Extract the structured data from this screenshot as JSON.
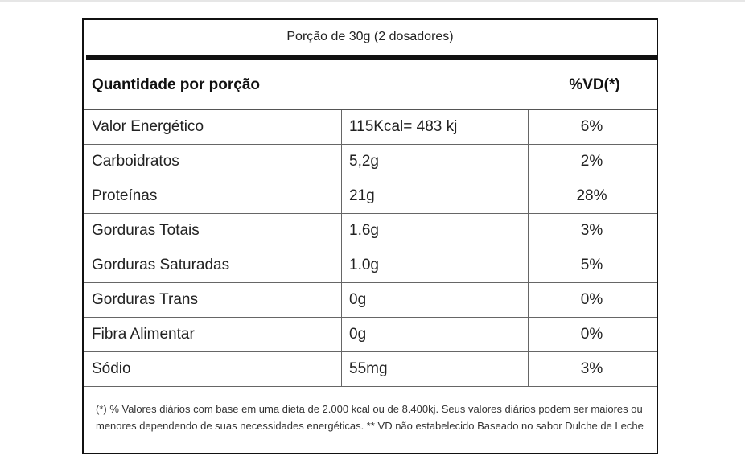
{
  "label": {
    "serving": "Porção de 30g (2 dosadores)",
    "header": {
      "quantity": "Quantidade por porção",
      "dv": "%VD(*)"
    },
    "rows": [
      {
        "name": "Valor Energético",
        "amount": "115Kcal= 483 kj",
        "dv": "6%"
      },
      {
        "name": "Carboidratos",
        "amount": "5,2g",
        "dv": "2%"
      },
      {
        "name": "Proteínas",
        "amount": "21g",
        "dv": "28%"
      },
      {
        "name": "Gorduras Totais",
        "amount": "1.6g",
        "dv": "3%"
      },
      {
        "name": "Gorduras Saturadas",
        "amount": "1.0g",
        "dv": "5%"
      },
      {
        "name": "Gorduras Trans",
        "amount": "0g",
        "dv": "0%"
      },
      {
        "name": "Fibra Alimentar",
        "amount": "0g",
        "dv": "0%"
      },
      {
        "name": "Sódio",
        "amount": "55mg",
        "dv": "3%"
      }
    ],
    "footnote": "(*) % Valores diários com base em uma dieta de 2.000 kcal ou de 8.400kj. Seus valores diários podem ser maiores ou menores dependendo de suas necessidades energéticas. ** VD não estabelecido Baseado no sabor Dulche de Leche"
  }
}
